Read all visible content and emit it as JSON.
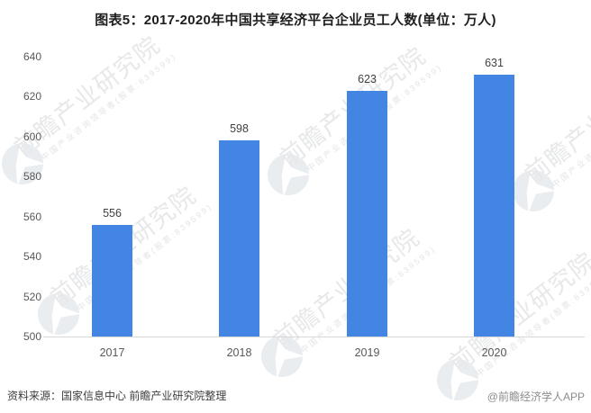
{
  "title": "图表5：2017-2020年中国共享经济平台企业员工人数(单位：万人)",
  "chart_data": {
    "type": "bar",
    "title": "图表5：2017-2020年中国共享经济平台企业员工人数(单位：万人)",
    "categories": [
      "2017",
      "2018",
      "2019",
      "2020"
    ],
    "values": [
      556,
      598,
      623,
      631
    ],
    "xlabel": "",
    "ylabel": "",
    "unit": "万人",
    "ylim": [
      500,
      640
    ],
    "yticks": [
      500,
      520,
      540,
      560,
      580,
      600,
      620,
      640
    ],
    "grid": false,
    "legend": "none",
    "bar_color": "#4285E2",
    "data_labels_shown": true
  },
  "footer": {
    "source": "资料来源：国家信息中心 前瞻产业研究院整理",
    "credit": "@前瞻经济学人APP"
  },
  "watermark": {
    "main": "前瞻产业研究院",
    "sub": "中国产业咨询领导者(股票:839599)"
  },
  "colors": {
    "bar": "#4285E2",
    "axis_line": "#D8D8D8",
    "tick_text": "#595959",
    "value_text": "#404040",
    "watermark_text": "#E7E8EA",
    "watermark_logo": "#EAEDF0"
  }
}
